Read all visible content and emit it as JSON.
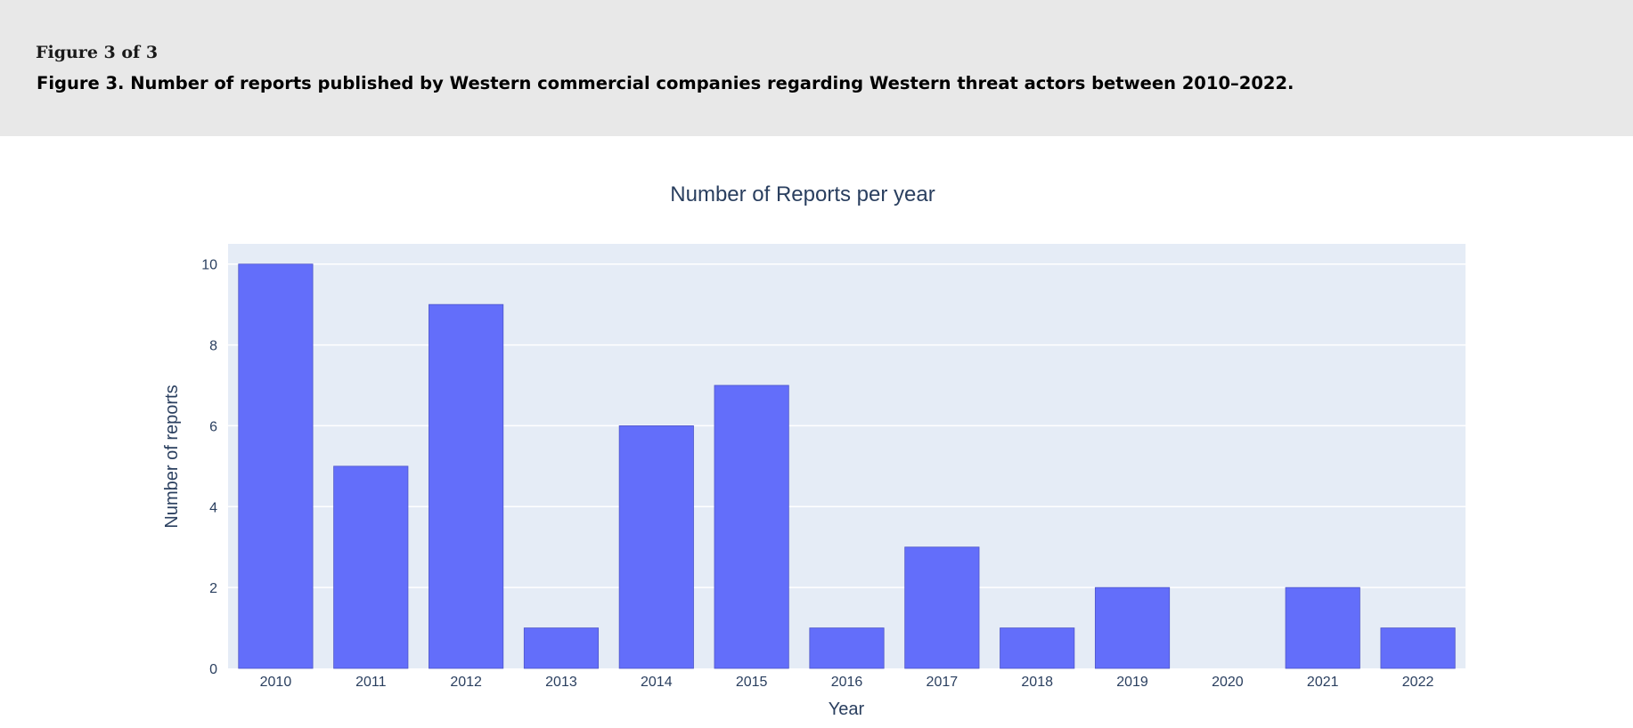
{
  "figure": {
    "counter": "Figure 3 of 3",
    "caption": "Figure 3. Number of reports published by Western commercial companies regarding Western threat actors between 2010–2022."
  },
  "colors": {
    "bar": "#636efa",
    "plot_bg": "#e5ecf6",
    "grid": "#ffffff",
    "text": "#2a3f5f"
  },
  "chart_data": {
    "type": "bar",
    "title": "Number of Reports per year",
    "xlabel": "Year",
    "ylabel": "Number of reports",
    "categories": [
      "2010",
      "2011",
      "2012",
      "2013",
      "2014",
      "2015",
      "2016",
      "2017",
      "2018",
      "2019",
      "2020",
      "2021",
      "2022"
    ],
    "values": [
      10,
      5,
      9,
      1,
      6,
      7,
      1,
      3,
      1,
      2,
      0,
      2,
      1
    ],
    "yticks": [
      0,
      2,
      4,
      6,
      8,
      10
    ],
    "ylim": [
      0,
      10.5
    ],
    "grid": true,
    "legend": false
  }
}
